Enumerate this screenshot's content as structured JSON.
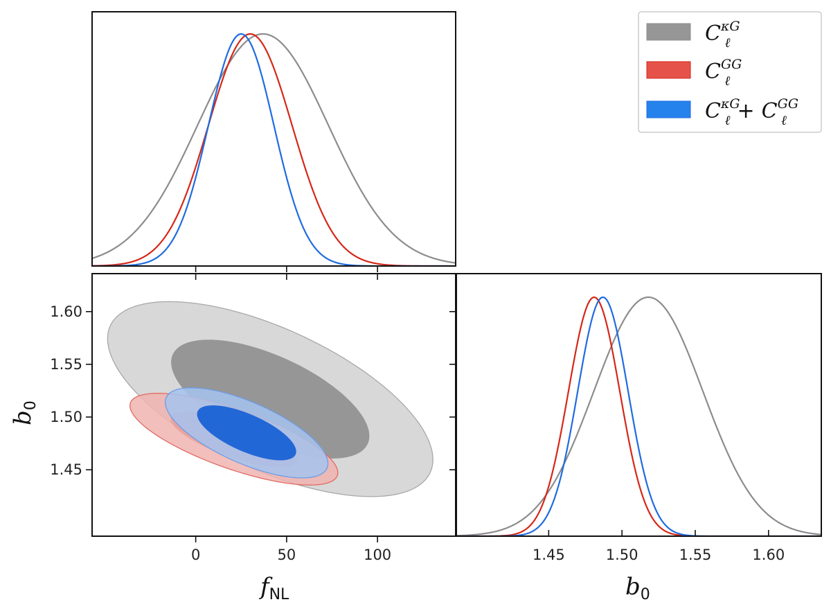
{
  "chart_data": [
    {
      "type": "line",
      "panel": "top-left",
      "description_of_axes": "marginal posterior of f_NL",
      "xlim": [
        -57,
        143
      ],
      "xticks": [
        0,
        50,
        100
      ],
      "series": [
        {
          "name": "kG",
          "color": "#8c8c8c",
          "mean": 37,
          "sigma": 36
        },
        {
          "name": "GG",
          "color": "#d62718",
          "mean": 30,
          "sigma": 23
        },
        {
          "name": "kG+GG",
          "color": "#1f6be0",
          "mean": 25,
          "sigma": 18
        }
      ]
    },
    {
      "type": "area",
      "panel": "bottom-left",
      "xlabel": "f",
      "xlabel_sub": "NL",
      "ylabel": "b",
      "ylabel_sub": "0",
      "xlim": [
        -57,
        143
      ],
      "ylim": [
        1.387,
        1.636
      ],
      "xticks": [
        0,
        50,
        100
      ],
      "xtick_labels": [
        "0",
        "50",
        "100"
      ],
      "yticks": [
        1.45,
        1.5,
        1.55,
        1.6
      ],
      "ytick_labels": [
        "1.45",
        "1.50",
        "1.55",
        "1.60"
      ],
      "series": [
        {
          "name": "kG",
          "fill_outer": "#d8d8d8",
          "fill_inner": "#969696",
          "stroke": "#a8a8a8",
          "cx": 41,
          "cy": 1.517,
          "sx": 36,
          "sy": 0.0372,
          "rho": -0.62
        },
        {
          "name": "GG",
          "fill_outer": "#f0b4b0",
          "fill_inner": "#e59d96",
          "stroke": "#e06a62",
          "cx": 21,
          "cy": 1.479,
          "sx": 23,
          "sy": 0.0175,
          "rho": -0.73
        },
        {
          "name": "kG+GG",
          "fill_outer": "#a6c3ee",
          "fill_inner": "#2267d6",
          "stroke": "#6e9ce6",
          "cx": 28,
          "cy": 1.485,
          "sx": 18,
          "sy": 0.0172,
          "rho": -0.68
        }
      ]
    },
    {
      "type": "line",
      "panel": "bottom-right",
      "xlabel": "b",
      "xlabel_sub": "0",
      "xlim": [
        1.387,
        1.636
      ],
      "xticks": [
        1.45,
        1.5,
        1.55,
        1.6
      ],
      "xtick_labels": [
        "1.45",
        "1.50",
        "1.55",
        "1.60"
      ],
      "series": [
        {
          "name": "kG",
          "color": "#8c8c8c",
          "mean": 1.518,
          "sigma": 0.0372
        },
        {
          "name": "GG",
          "color": "#d62718",
          "mean": 1.481,
          "sigma": 0.0175
        },
        {
          "name": "kG+GG",
          "color": "#1f6be0",
          "mean": 1.487,
          "sigma": 0.0172
        }
      ]
    }
  ],
  "legend": {
    "placement": "top-right",
    "entries": [
      {
        "base": "C",
        "sub": "ℓ",
        "sup": "κG",
        "color": "#969696",
        "stroke": "#8c8c8c"
      },
      {
        "base": "C",
        "sub": "ℓ",
        "sup": "GG",
        "color": "#e5524a",
        "stroke": "#d62718"
      },
      {
        "base": "C",
        "sub": "ℓ",
        "sup": "κG",
        "plus": "+",
        "base2": "C",
        "sub2": "ℓ",
        "sup2": "GG",
        "color": "#2582ec",
        "stroke": "#1f6be0"
      }
    ]
  }
}
